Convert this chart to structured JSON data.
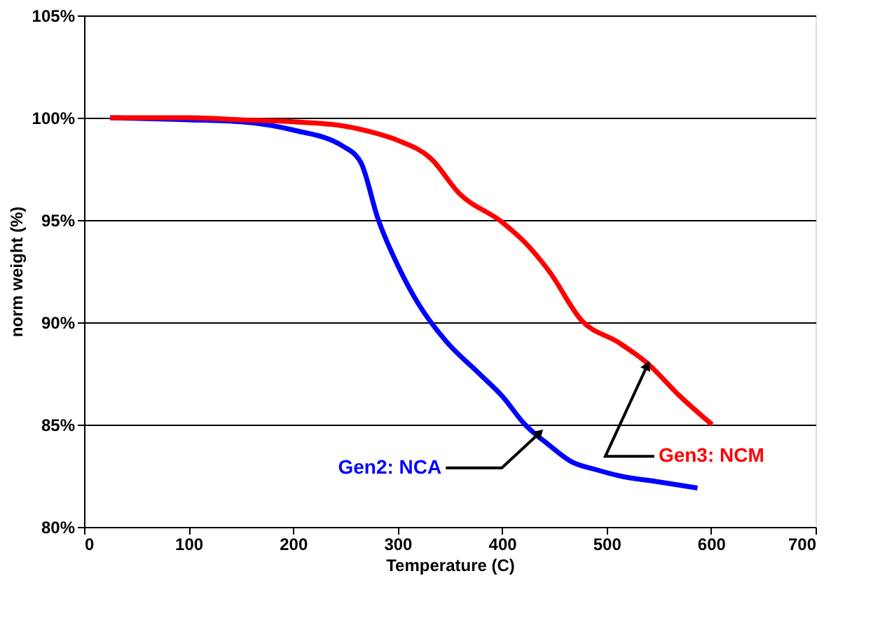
{
  "chart_data": {
    "type": "line",
    "xlabel": "Temperature (C)",
    "ylabel": "norm weight (%)",
    "xlim": [
      0,
      700
    ],
    "xticks": [
      0,
      100,
      200,
      300,
      400,
      500,
      600,
      700
    ],
    "ylim": [
      80,
      105
    ],
    "yticks": [
      {
        "value": 80,
        "label": "80%"
      },
      {
        "value": 85,
        "label": "85%"
      },
      {
        "value": 90,
        "label": "90%"
      },
      {
        "value": 95,
        "label": "95%"
      },
      {
        "value": 100,
        "label": "100%"
      },
      {
        "value": 105,
        "label": "105%"
      }
    ],
    "grid": "y",
    "marker": "none",
    "line_style": "solid",
    "series": [
      {
        "color": "#0000ff",
        "x": [
          25,
          100,
          150,
          200,
          248,
          265,
          281,
          301,
          320,
          346,
          378,
          400,
          422,
          445,
          466,
          490,
          512,
          550,
          587
        ],
        "values": [
          100,
          99.9,
          99.8,
          99.4,
          98.6,
          97.8,
          95.1,
          92.7,
          90.9,
          89.1,
          87.5,
          86.4,
          85.0,
          84.0,
          83.2,
          82.8,
          82.5,
          82.2,
          81.9
        ]
      },
      {
        "color": "#ff0000",
        "x": [
          25,
          100,
          150,
          200,
          248,
          275,
          300,
          332,
          359,
          400,
          422,
          445,
          476,
          512,
          539,
          570,
          601
        ],
        "values": [
          100,
          100,
          99.9,
          99.8,
          99.6,
          99.3,
          98.9,
          98.0,
          96.3,
          94.9,
          93.9,
          92.5,
          90.1,
          89.0,
          88.0,
          86.4,
          85.0
        ]
      }
    ],
    "annotations": [
      {
        "text": "Gen2: NCA",
        "x": 436,
        "y": 84.6
      },
      {
        "text": "Gen3: NCM",
        "x": 539,
        "y": 87.9
      }
    ]
  }
}
